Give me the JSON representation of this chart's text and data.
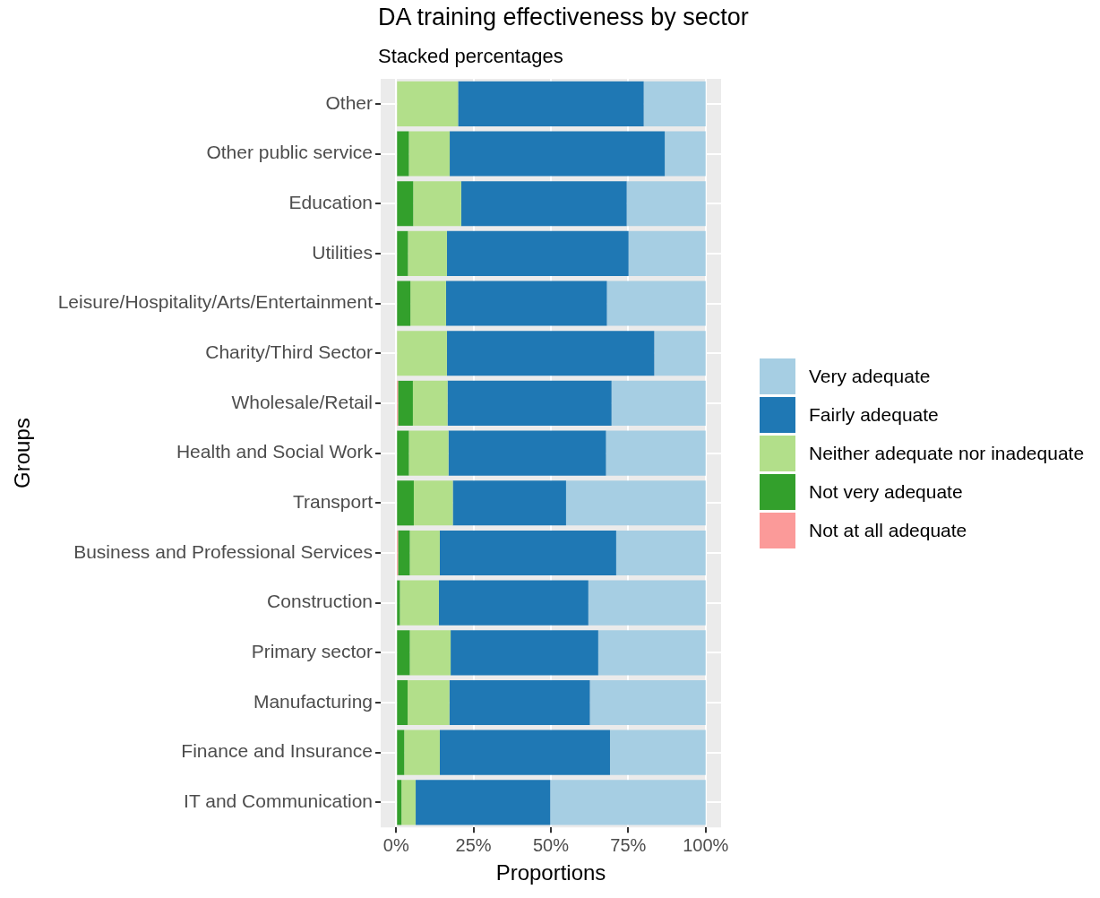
{
  "chart_data": {
    "type": "bar",
    "orientation": "horizontal",
    "stacked": true,
    "title": "DA training effectiveness by sector",
    "subtitle": "Stacked percentages",
    "xlabel": "Proportions",
    "ylabel": "Groups",
    "categories": [
      "Other",
      "Other public service",
      "Education",
      "Utilities",
      "Leisure/Hospitality/Arts/Entertainment",
      "Charity/Third Sector",
      "Wholesale/Retail",
      "Health and Social Work",
      "Transport",
      "Business and Professional Services",
      "Construction",
      "Primary sector",
      "Manufacturing",
      "Finance and Insurance",
      "IT and Communication"
    ],
    "series": [
      {
        "name": "Not at all adequate",
        "color": "#fb9a99",
        "values": [
          0,
          0,
          0,
          0,
          0,
          0,
          0.6,
          0,
          0,
          0.6,
          0,
          0,
          0,
          0,
          0
        ]
      },
      {
        "name": "Not very adequate",
        "color": "#33a02c",
        "values": [
          0,
          4.1,
          5.5,
          3.8,
          4.6,
          0,
          4.8,
          4.1,
          5.7,
          3.8,
          1.2,
          4.4,
          3.7,
          2.6,
          1.7
        ]
      },
      {
        "name": "Neither adequate nor inadequate",
        "color": "#b2df8a",
        "values": [
          20,
          13.2,
          15.5,
          12.6,
          11.5,
          16.4,
          11.2,
          12.8,
          12.6,
          9.7,
          12.6,
          13.2,
          13.5,
          11.5,
          4.6
        ]
      },
      {
        "name": "Fairly adequate",
        "color": "#1f78b4",
        "values": [
          60,
          69.5,
          53.5,
          58.7,
          52,
          67,
          53,
          50.9,
          36.6,
          57,
          48.3,
          47.7,
          45.4,
          55,
          43.5
        ]
      },
      {
        "name": "Very adequate",
        "color": "#a6cee3",
        "values": [
          20,
          13.2,
          25.5,
          24.9,
          31.9,
          16.6,
          30.4,
          32.2,
          45.1,
          28.9,
          37.9,
          34.7,
          37.4,
          30.9,
          50.2
        ]
      }
    ],
    "xlim": [
      -5,
      105
    ],
    "xticks": [
      {
        "value": 0,
        "label": "0%"
      },
      {
        "value": 25,
        "label": "25%"
      },
      {
        "value": 50,
        "label": "50%"
      },
      {
        "value": 75,
        "label": "75%"
      },
      {
        "value": 100,
        "label": "100%"
      }
    ],
    "grid": true,
    "legend": "right"
  }
}
